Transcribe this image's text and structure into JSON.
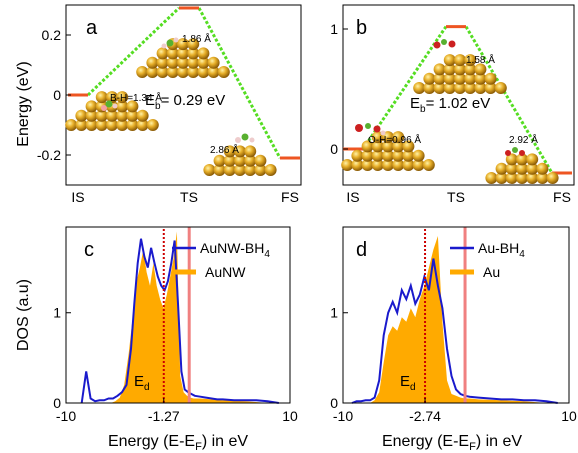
{
  "figure": {
    "y_axis_title_top": "Energy (eV)",
    "y_axis_title_bottom": "DOS (a.u)",
    "x_axis_title_c": "Energy (E-E",
    "x_axis_title_d": "Energy (E-E",
    "x_axis_sub": "F",
    "x_axis_suffix": ") in eV"
  },
  "chart_data": [
    {
      "panel": "a",
      "type": "line",
      "categories": [
        "IS",
        "TS",
        "FS"
      ],
      "values": [
        0.0,
        0.29,
        -0.21
      ],
      "ylim": [
        -0.3,
        0.3
      ],
      "yticks": [
        "0.2",
        "0",
        "-0.2"
      ],
      "barrier_label": "E",
      "barrier_sub": "b",
      "barrier_value": "= 0.29 eV",
      "annotations": {
        "is": "B-H=1.34 Å",
        "ts": "1.86 Å",
        "fs": "2.86 Å"
      },
      "colors": {
        "level": "#ee5522",
        "path": "#55dd22"
      }
    },
    {
      "panel": "b",
      "type": "line",
      "categories": [
        "IS",
        "TS",
        "FS"
      ],
      "values": [
        0.0,
        1.02,
        -0.2
      ],
      "ylim": [
        -0.3,
        1.2
      ],
      "yticks": [
        "1",
        "0"
      ],
      "barrier_label": "E",
      "barrier_sub": "b",
      "barrier_value": "= 1.02 eV",
      "annotations": {
        "is": "O-H=0.96 Å",
        "ts": "1.58 Å",
        "fs": "2.92 Å"
      },
      "colors": {
        "level": "#ee5522",
        "path": "#55dd22"
      }
    },
    {
      "panel": "c",
      "type": "area",
      "xlim": [
        -10,
        10
      ],
      "ylim": [
        0,
        1.95
      ],
      "xticks": [
        "-10",
        "-1.27",
        "10"
      ],
      "yticks": [
        "1",
        "0"
      ],
      "ed_value": -1.27,
      "fermi_marker": 1.0,
      "ed_label": "E",
      "ed_sub": "d",
      "series": [
        {
          "name": "AuNW-BH",
          "name_sub": "4",
          "color": "#1a1acc",
          "style": "line",
          "x": [
            -8.6,
            -8.2,
            -7.8,
            -7.4,
            -7.0,
            -6.6,
            -6.2,
            -5.8,
            -5.4,
            -5.0,
            -4.6,
            -4.2,
            -3.9,
            -3.6,
            -3.3,
            -3.0,
            -2.7,
            -2.4,
            -2.1,
            -1.8,
            -1.5,
            -1.2,
            -0.9,
            -0.6,
            -0.3,
            0.0,
            0.3,
            0.6,
            0.9,
            1.2,
            1.5,
            2.0,
            2.5,
            3.0,
            3.5,
            4.0,
            5.0,
            6.0,
            7.0,
            8.0,
            9.0
          ],
          "y": [
            0.0,
            0.35,
            0.05,
            0.02,
            0.03,
            0.03,
            0.05,
            0.05,
            0.08,
            0.12,
            0.2,
            0.6,
            1.1,
            1.55,
            1.82,
            1.62,
            1.5,
            1.72,
            1.55,
            1.4,
            1.3,
            1.25,
            1.35,
            1.55,
            1.8,
            1.1,
            0.35,
            0.15,
            0.12,
            0.1,
            0.08,
            0.07,
            0.06,
            0.05,
            0.04,
            0.04,
            0.03,
            0.03,
            0.03,
            0.02,
            0.0
          ]
        },
        {
          "name": "AuNW",
          "color": "#ffaa00",
          "style": "fill",
          "x": [
            -6.0,
            -5.6,
            -5.2,
            -4.8,
            -4.4,
            -4.0,
            -3.7,
            -3.4,
            -3.1,
            -2.8,
            -2.5,
            -2.2,
            -1.9,
            -1.6,
            -1.3,
            -1.0,
            -0.7,
            -0.4,
            -0.1,
            0.2,
            0.5,
            0.8,
            1.1,
            1.4,
            2.0,
            3.0,
            4.0,
            6.0,
            8.0
          ],
          "y": [
            0.0,
            0.02,
            0.06,
            0.2,
            0.55,
            1.0,
            1.35,
            1.5,
            1.7,
            1.45,
            1.3,
            1.55,
            1.3,
            1.15,
            1.05,
            1.2,
            1.4,
            1.6,
            1.9,
            0.3,
            0.12,
            0.08,
            0.06,
            0.05,
            0.05,
            0.04,
            0.03,
            0.02,
            0.0
          ]
        }
      ]
    },
    {
      "panel": "d",
      "type": "area",
      "xlim": [
        -10,
        10
      ],
      "ylim": [
        0,
        1.95
      ],
      "xticks": [
        "-10",
        "-2.74",
        "10"
      ],
      "yticks": [
        "1",
        "0"
      ],
      "ed_value": -2.74,
      "fermi_marker": 0.8,
      "ed_label": "E",
      "ed_sub": "d",
      "series": [
        {
          "name": "Au-BH",
          "name_sub": "4",
          "color": "#1a1acc",
          "style": "line",
          "x": [
            -9.2,
            -8.8,
            -8.4,
            -8.0,
            -7.6,
            -7.2,
            -6.8,
            -6.4,
            -6.0,
            -5.6,
            -5.2,
            -4.8,
            -4.4,
            -4.0,
            -3.6,
            -3.2,
            -2.8,
            -2.4,
            -2.0,
            -1.6,
            -1.2,
            -0.8,
            -0.4,
            0.0,
            0.4,
            0.8,
            1.2,
            2.0,
            3.0,
            4.0,
            5.0,
            6.0,
            7.0,
            8.0,
            9.0
          ],
          "y": [
            0.0,
            0.02,
            0.02,
            0.03,
            0.03,
            0.06,
            0.25,
            0.75,
            1.0,
            1.12,
            1.0,
            1.25,
            1.15,
            1.3,
            1.1,
            1.2,
            1.4,
            1.25,
            1.6,
            1.3,
            1.05,
            0.6,
            0.3,
            0.15,
            0.1,
            0.08,
            0.07,
            0.06,
            0.05,
            0.04,
            0.04,
            0.03,
            0.03,
            0.02,
            0.0
          ]
        },
        {
          "name": "Au",
          "color": "#ffaa00",
          "style": "fill",
          "x": [
            -7.6,
            -7.2,
            -6.8,
            -6.4,
            -6.0,
            -5.6,
            -5.2,
            -4.8,
            -4.4,
            -4.0,
            -3.6,
            -3.2,
            -2.8,
            -2.4,
            -2.0,
            -1.6,
            -1.2,
            -0.8,
            -0.4,
            0.0,
            0.4,
            0.8,
            1.2,
            2.0,
            4.0,
            6.0,
            8.0
          ],
          "y": [
            0.0,
            0.03,
            0.12,
            0.45,
            0.75,
            0.85,
            0.8,
            0.95,
            0.9,
            1.05,
            0.95,
            1.15,
            1.3,
            1.5,
            1.7,
            1.85,
            0.9,
            0.25,
            0.1,
            0.08,
            0.06,
            0.05,
            0.05,
            0.04,
            0.03,
            0.02,
            0.0
          ]
        }
      ]
    }
  ]
}
